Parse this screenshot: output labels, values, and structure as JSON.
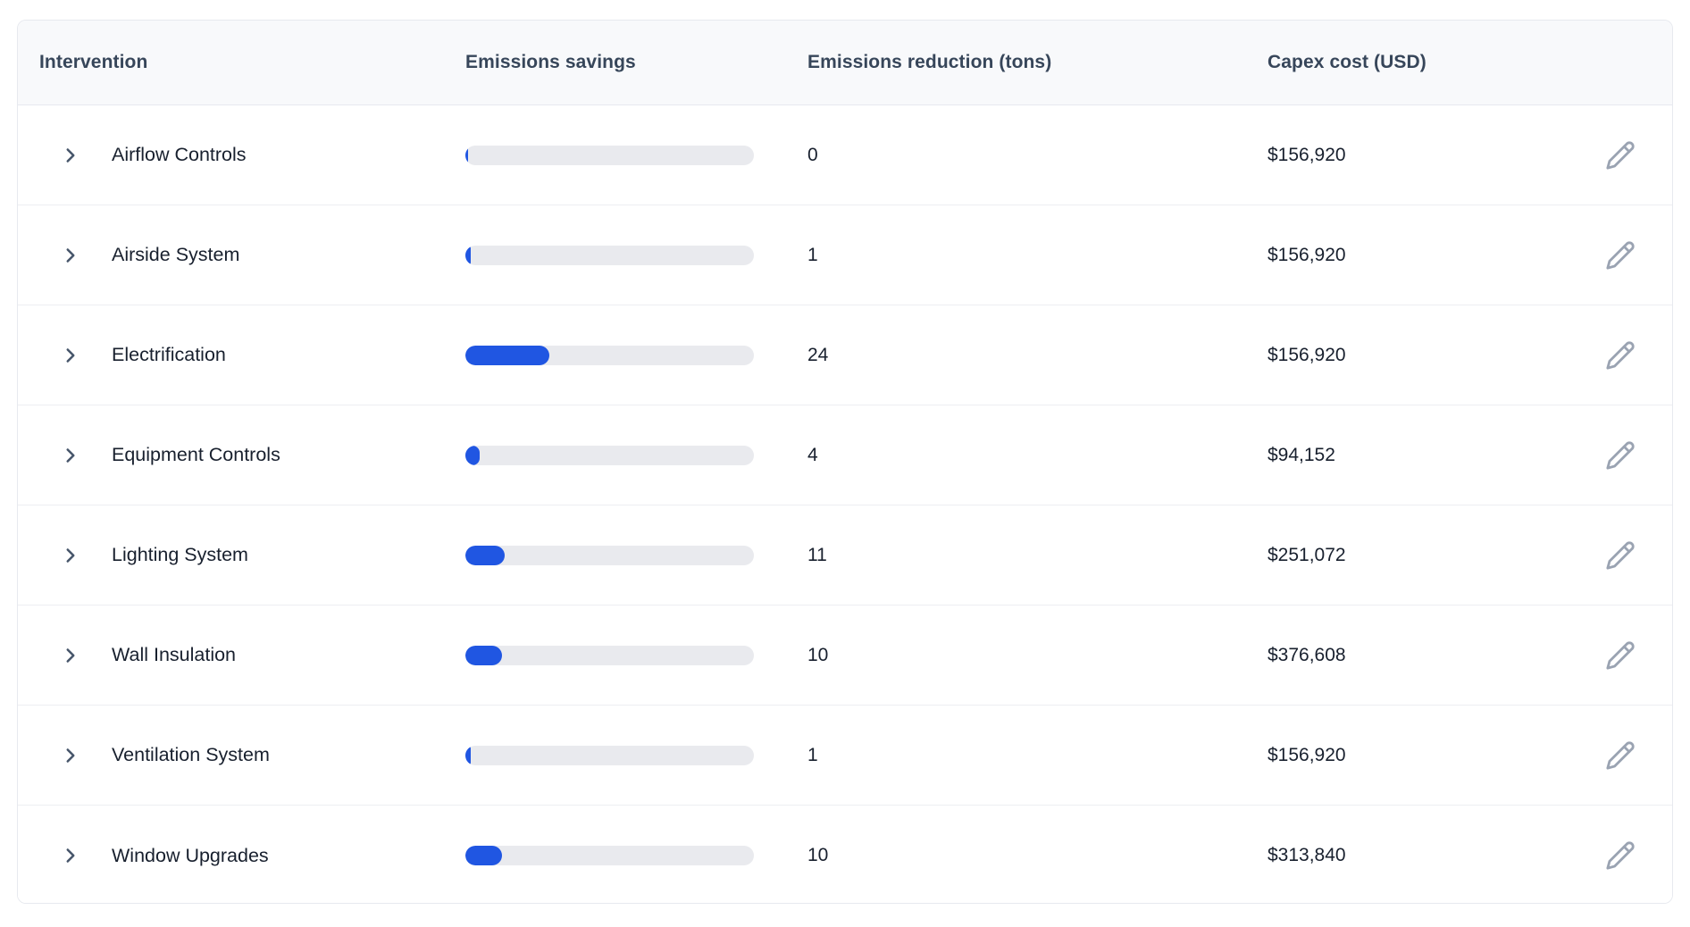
{
  "table": {
    "columns": [
      {
        "label": "Intervention"
      },
      {
        "label": "Emissions savings"
      },
      {
        "label": "Emissions reduction (tons)"
      },
      {
        "label": "Capex cost (USD)"
      },
      {
        "label": ""
      }
    ],
    "rows": [
      {
        "name": "Airflow Controls",
        "bar_percent": 0.9,
        "reduction": "0",
        "capex": "$156,920"
      },
      {
        "name": "Airside System",
        "bar_percent": 1.9,
        "reduction": "1",
        "capex": "$156,920"
      },
      {
        "name": "Electrification",
        "bar_percent": 29.0,
        "reduction": "24",
        "capex": "$156,920"
      },
      {
        "name": "Equipment Controls",
        "bar_percent": 5.0,
        "reduction": "4",
        "capex": "$94,152"
      },
      {
        "name": "Lighting System",
        "bar_percent": 13.5,
        "reduction": "11",
        "capex": "$251,072"
      },
      {
        "name": "Wall Insulation",
        "bar_percent": 12.7,
        "reduction": "10",
        "capex": "$376,608"
      },
      {
        "name": "Ventilation System",
        "bar_percent": 1.9,
        "reduction": "1",
        "capex": "$156,920"
      },
      {
        "name": "Window Upgrades",
        "bar_percent": 12.7,
        "reduction": "10",
        "capex": "$313,840"
      }
    ]
  },
  "icons": {
    "row_expand": "chevron-right-icon",
    "row_edit": "pencil-icon"
  },
  "colors": {
    "bar_fill": "#2056e2",
    "bar_track": "#e9eaee",
    "header_bg": "#f8f9fb",
    "header_text": "#37465a",
    "row_text": "#18202e",
    "border": "#e7e9ef",
    "divider": "#edeef2",
    "icon_gray": "#9aa3b2",
    "chevron": "#46556a"
  }
}
